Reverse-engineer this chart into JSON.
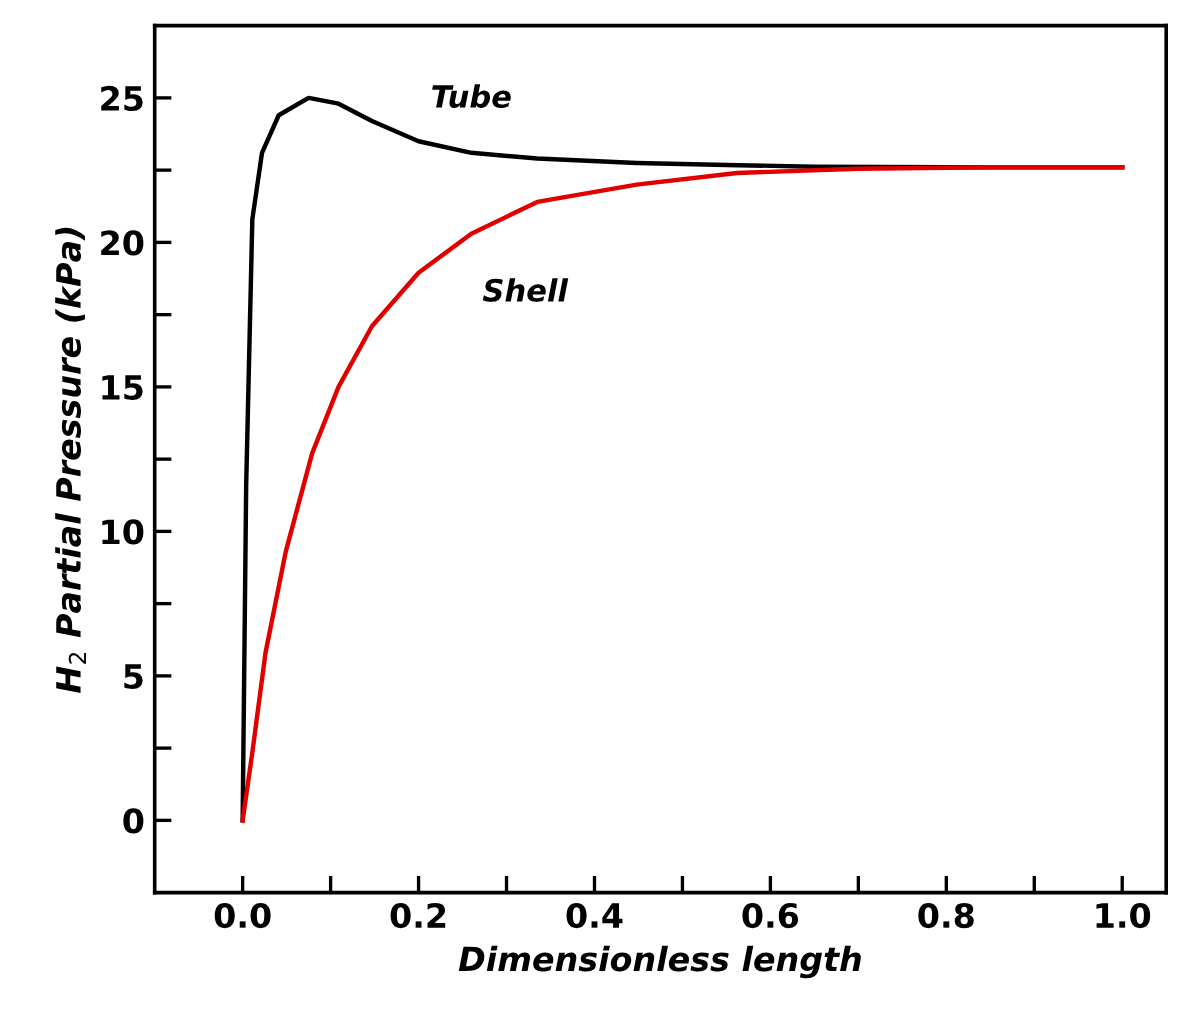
{
  "chart_data": {
    "type": "line",
    "xlabel": "Dimensionless length",
    "ylabel": "H$_{2}$ Partial Pressure (kPa)",
    "xlim": [
      -0.1,
      1.05
    ],
    "ylim": [
      -2.5,
      27.5
    ],
    "xticks": [
      {
        "value": 0,
        "label": "0.0"
      },
      {
        "value": 0.1,
        "label": null
      },
      0.2,
      {
        "value": 0.3,
        "label": null
      },
      0.4,
      {
        "value": 0.5,
        "label": null
      },
      0.6,
      {
        "value": 0.7,
        "label": null
      },
      0.8,
      {
        "value": 0.9,
        "label": null
      },
      {
        "value": 1,
        "label": "1.0"
      }
    ],
    "yticks": [
      0,
      {
        "value": 2.5,
        "label": null
      },
      5,
      {
        "value": 7.5,
        "label": null
      },
      10,
      {
        "value": 12.5,
        "label": null
      },
      15,
      {
        "value": 17.5,
        "label": null
      },
      20,
      {
        "value": 22.5,
        "label": null
      },
      25
    ],
    "grid": false,
    "legend": false,
    "marker": "none",
    "line_style": "solid",
    "series": [
      {
        "name": "Tube",
        "color": "#000000",
        "x": [
          0,
          0.004,
          0.011,
          0.022,
          0.041,
          0.075,
          0.109,
          0.147,
          0.2,
          0.26,
          0.335,
          0.448,
          0.55,
          0.65,
          0.8,
          1.0
        ],
        "values": [
          0,
          11.6,
          20.8,
          23.1,
          24.4,
          25.0,
          24.8,
          24.2,
          23.5,
          23.1,
          22.9,
          22.75,
          22.68,
          22.62,
          22.6,
          22.6
        ]
      },
      {
        "name": "Shell",
        "color": "#e00000",
        "x": [
          0,
          0.011,
          0.026,
          0.049,
          0.079,
          0.109,
          0.147,
          0.2,
          0.26,
          0.335,
          0.448,
          0.562,
          0.7,
          0.85,
          1.0
        ],
        "values": [
          0,
          2.35,
          5.8,
          9.3,
          12.7,
          15.0,
          17.1,
          18.95,
          20.3,
          21.4,
          22.0,
          22.4,
          22.55,
          22.6,
          22.6
        ]
      }
    ]
  }
}
